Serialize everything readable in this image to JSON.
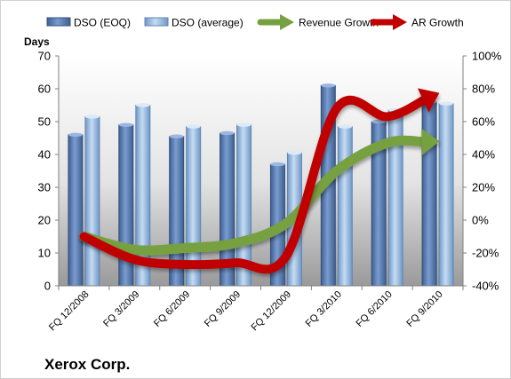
{
  "chart_data": {
    "type": "bar",
    "categories": [
      "FQ 12/2008",
      "FQ 3/2009",
      "FQ 6/2009",
      "FQ 9/2009",
      "FQ 12/2009",
      "FQ 3/2010",
      "FQ 6/2010",
      "FQ 9/2010"
    ],
    "series": [
      {
        "name": "DSO (EOQ)",
        "type": "bar",
        "axis": "left",
        "color": "#5b7fb5",
        "values": [
          46,
          49,
          45.5,
          46.5,
          37,
          61,
          50,
          56
        ]
      },
      {
        "name": "DSO (average)",
        "type": "bar",
        "axis": "left",
        "color": "#8fb6e0",
        "values": [
          51.5,
          55,
          48.5,
          49,
          40.5,
          48.5,
          53.5,
          55.5
        ]
      },
      {
        "name": "Revenue Growth",
        "type": "line",
        "axis": "right",
        "color": "#77a040",
        "values": [
          -10,
          -18,
          -17,
          -14,
          -2,
          30,
          47,
          48
        ]
      },
      {
        "name": "AR Growth",
        "type": "line",
        "axis": "right",
        "color": "#c00000",
        "values": [
          -10,
          -24,
          -27,
          -26,
          -22,
          68,
          63,
          77
        ]
      }
    ],
    "ylabel": "Days",
    "ylim": [
      0,
      70
    ],
    "yticks": [
      0,
      10,
      20,
      30,
      40,
      50,
      60,
      70
    ],
    "y2lim": [
      -40,
      100
    ],
    "y2ticks": [
      "-40%",
      "-20%",
      "0%",
      "20%",
      "40%",
      "60%",
      "80%",
      "100%"
    ],
    "grid": false,
    "legend": "top"
  },
  "company_name": "Xerox Corp."
}
